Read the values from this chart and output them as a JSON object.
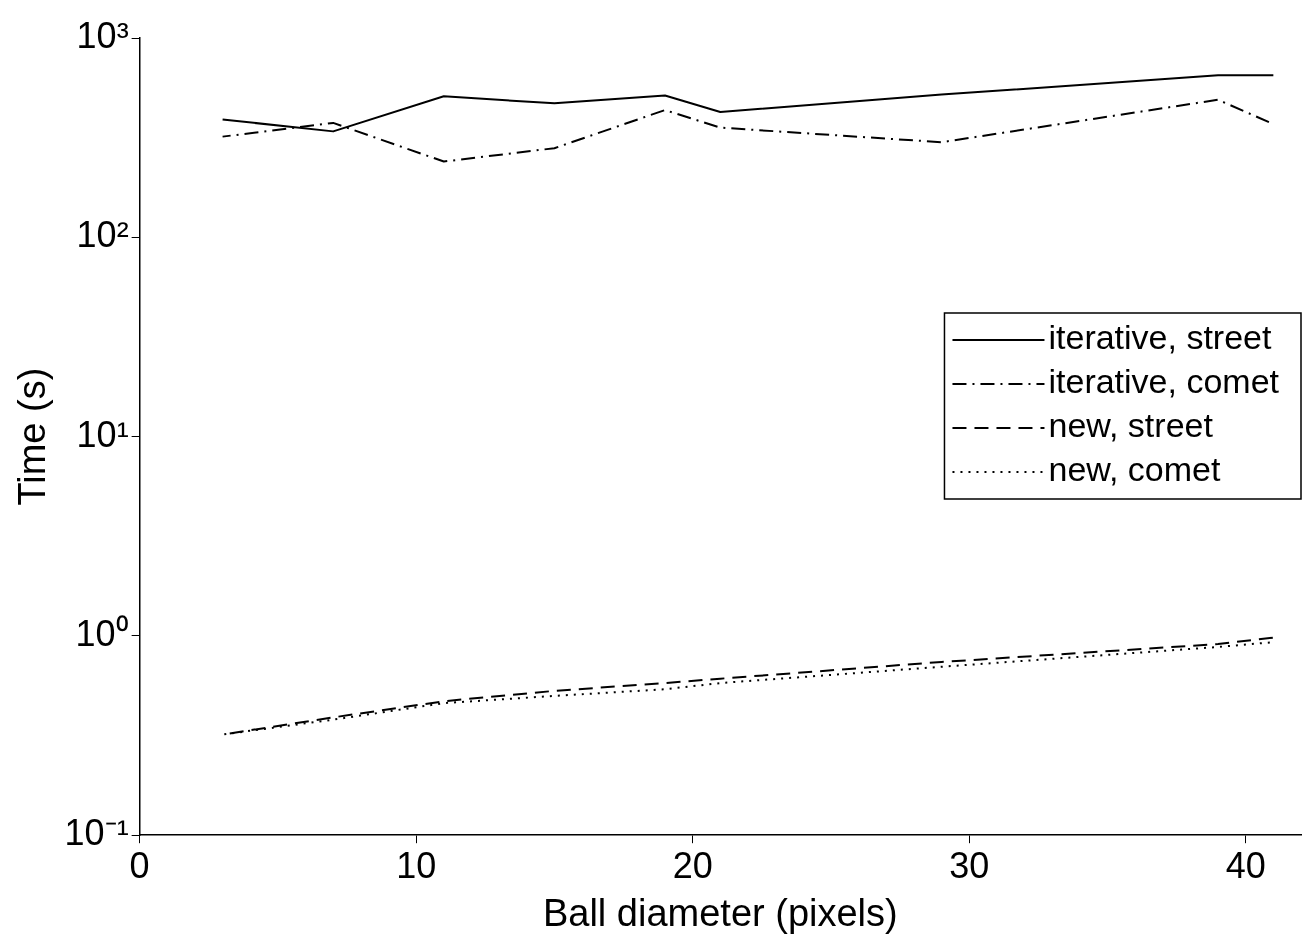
{
  "chart_data": {
    "type": "line",
    "xlabel": "Ball diameter (pixels)",
    "ylabel": "Time (s)",
    "log": "y",
    "xlim": [
      0,
      42
    ],
    "xticks": [
      0,
      10,
      20,
      30,
      40
    ],
    "ylim": [
      0.1,
      1000
    ],
    "yticks": [
      {
        "value": 0.1,
        "label": "10⁻¹"
      },
      {
        "value": 1,
        "label": "10⁰"
      },
      {
        "value": 10,
        "label": "10¹"
      },
      {
        "value": 100,
        "label": "10²"
      },
      {
        "value": 1000,
        "label": "10³"
      }
    ],
    "grid": false,
    "legend": "right",
    "marker": "none",
    "x": [
      3,
      7,
      11,
      15,
      19,
      21,
      29,
      39,
      41
    ],
    "series": [
      {
        "name": "iterative, street",
        "color": "#000000",
        "line_style": "solid",
        "values": [
          390,
          340,
          510,
          470,
          515,
          425,
          520,
          650,
          650
        ]
      },
      {
        "name": "iterative, comet",
        "color": "#000000",
        "line_style": "dashdot",
        "values": [
          320,
          375,
          240,
          280,
          435,
          355,
          300,
          490,
          370
        ]
      },
      {
        "name": "new, street",
        "color": "#000000",
        "line_style": "dashed",
        "values": [
          0.32,
          0.39,
          0.47,
          0.53,
          0.58,
          0.61,
          0.74,
          0.91,
          0.98
        ]
      },
      {
        "name": "new, comet",
        "color": "#000000",
        "line_style": "dotted",
        "values": [
          0.32,
          0.38,
          0.46,
          0.5,
          0.54,
          0.58,
          0.7,
          0.88,
          0.93
        ]
      }
    ]
  }
}
